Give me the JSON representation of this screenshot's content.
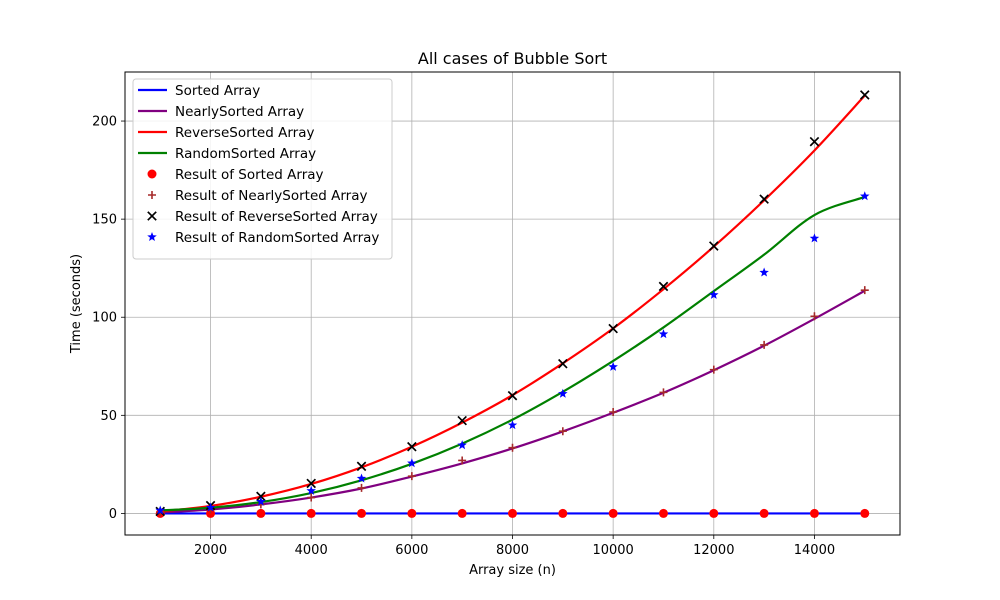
{
  "chart_data": {
    "type": "line",
    "title": "All cases of Bubble Sort",
    "xlabel": "Array size (n)",
    "ylabel": "Time (seconds)",
    "xlim": [
      300,
      15700
    ],
    "ylim": [
      -11,
      225
    ],
    "xticks": [
      2000,
      4000,
      6000,
      8000,
      10000,
      12000,
      14000
    ],
    "yticks": [
      0,
      50,
      100,
      150,
      200
    ],
    "grid": true,
    "legend_position": "top-left",
    "x": [
      1000,
      2000,
      3000,
      4000,
      5000,
      6000,
      7000,
      8000,
      9000,
      10000,
      11000,
      12000,
      13000,
      14000,
      15000
    ],
    "fit_series": [
      {
        "name": "Sorted Array",
        "color": "#0000ff",
        "values": [
          0,
          0,
          0,
          0,
          0,
          0,
          0,
          0,
          0,
          0,
          0,
          0,
          0,
          0,
          0
        ]
      },
      {
        "name": "NearlySorted Array",
        "color": "#800080",
        "values": [
          0.5,
          2.0,
          4.6,
          8.1,
          12.7,
          18.8,
          25.5,
          33.1,
          41.8,
          51.3,
          61.5,
          73.0,
          85.5,
          99.2,
          113.5
        ]
      },
      {
        "name": "ReverseSorted Array",
        "color": "#ff0000",
        "values": [
          1,
          3.8,
          8.5,
          15,
          23.5,
          34,
          46.3,
          60.3,
          76.5,
          94.3,
          114.3,
          136,
          159.6,
          185,
          213
        ]
      },
      {
        "name": "RandomSorted Array",
        "color": "#008000",
        "values": [
          1.5,
          2.9,
          5.8,
          10.4,
          16.9,
          25.3,
          35.6,
          47.8,
          62,
          77.7,
          94.8,
          113.3,
          131.9,
          152.1,
          161.3
        ]
      }
    ],
    "scatter_series": [
      {
        "name": "Result of Sorted Array",
        "color": "#ff0000",
        "marker": "circle",
        "values": [
          0,
          0,
          0,
          0,
          0,
          0,
          0,
          0,
          0,
          0,
          0,
          0,
          0,
          0,
          0
        ]
      },
      {
        "name": "Result of NearlySorted Array",
        "color": "#a52a2a",
        "marker": "plus",
        "values": [
          0.5,
          2.0,
          4.6,
          8.1,
          13,
          19,
          27,
          33.5,
          41.9,
          51.7,
          61.7,
          73.3,
          85.9,
          100.5,
          113.8
        ]
      },
      {
        "name": "Result of ReverseSorted Array",
        "color": "#000000",
        "marker": "x",
        "values": [
          1,
          4,
          8.7,
          15.3,
          24,
          34,
          47.3,
          60,
          76.3,
          94.2,
          115.7,
          136.3,
          160.2,
          189.5,
          213.3
        ]
      },
      {
        "name": "Result of RandomSorted Array",
        "color": "#0000ff",
        "marker": "star",
        "values": [
          1.5,
          3,
          6,
          11.5,
          17.8,
          25.6,
          34.8,
          45,
          61,
          74.7,
          91.4,
          111.4,
          122.8,
          140.2,
          161.7
        ]
      }
    ]
  }
}
